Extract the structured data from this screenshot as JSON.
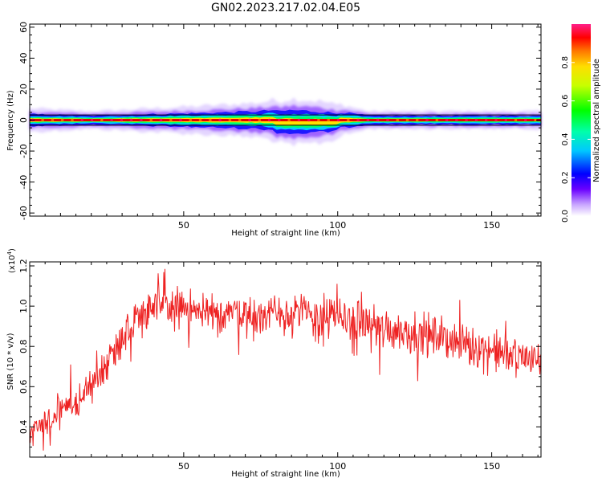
{
  "title": "GN02.2023.217.02.04.E05",
  "chart_data": [
    {
      "type": "heatmap",
      "title": "GN02.2023.217.02.04.E05",
      "xlabel": "Height of straight line (km)",
      "ylabel": "Frequency (Hz)",
      "xlim": [
        0,
        166
      ],
      "ylim": [
        -62,
        62
      ],
      "xticks": [
        50,
        100,
        150
      ],
      "yticks": [
        -60,
        -40,
        -20,
        0,
        20,
        40,
        60
      ],
      "colorbar": {
        "label": "Normalized spectral amplitude",
        "range": [
          0,
          1
        ],
        "ticks": [
          "0.0",
          "0.2",
          "0.4",
          "0.6",
          "0.8"
        ]
      },
      "band_center_hz": 0,
      "band_halfwidth_hz": [
        [
          0,
          4
        ],
        [
          20,
          3
        ],
        [
          40,
          4
        ],
        [
          60,
          5
        ],
        [
          75,
          6
        ],
        [
          85,
          8
        ],
        [
          95,
          7
        ],
        [
          110,
          3
        ],
        [
          140,
          3
        ],
        [
          166,
          3
        ]
      ]
    },
    {
      "type": "line",
      "xlabel": "Height of straight line (km)",
      "ylabel": "SNR (10 * v/v)",
      "scale_label": "(x10",
      "scale_exp": "4",
      "xlim": [
        0,
        166
      ],
      "ylim": [
        0.25,
        1.22
      ],
      "xticks": [
        50,
        100,
        150
      ],
      "yticks": [
        "0.4",
        "0.6",
        "0.8",
        "1.0",
        "1.2"
      ],
      "series": [
        {
          "color": "#ee2222",
          "x": [
            0,
            5,
            10,
            15,
            20,
            25,
            30,
            35,
            40,
            45,
            50,
            55,
            60,
            65,
            70,
            75,
            80,
            85,
            90,
            95,
            100,
            105,
            110,
            115,
            120,
            125,
            130,
            135,
            140,
            145,
            150,
            155,
            160,
            166
          ],
          "y": [
            0.38,
            0.42,
            0.47,
            0.52,
            0.6,
            0.72,
            0.85,
            0.95,
            1.0,
            1.0,
            0.98,
            0.96,
            0.96,
            0.98,
            0.97,
            0.96,
            0.97,
            0.97,
            0.96,
            0.95,
            0.94,
            0.93,
            0.91,
            0.89,
            0.88,
            0.87,
            0.85,
            0.84,
            0.82,
            0.8,
            0.78,
            0.76,
            0.75,
            0.72
          ]
        }
      ]
    }
  ]
}
